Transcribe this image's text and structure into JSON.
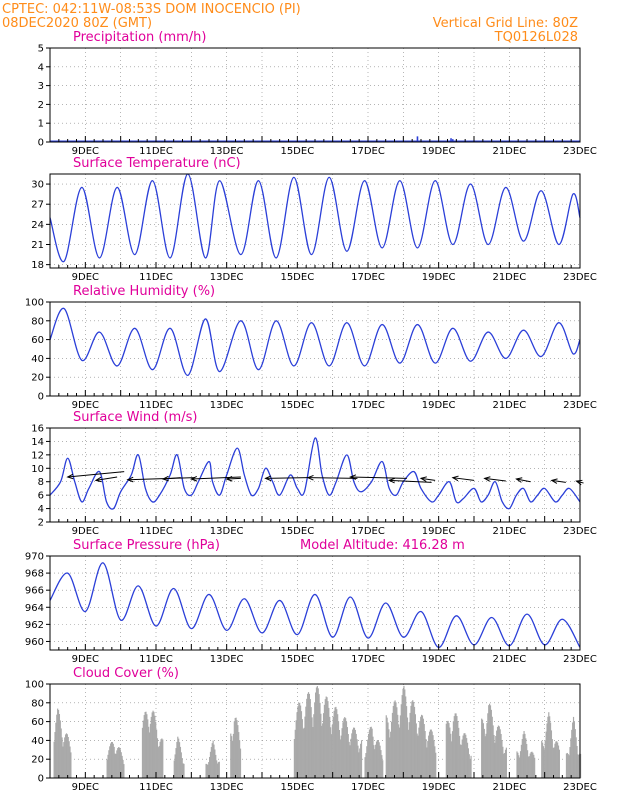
{
  "header": {
    "line1_left": "CPTEC:   042:11W-08:53S   DOM INOCENCIO (PI)",
    "line2_left": "08DEC2020 80Z (GMT)",
    "line2_right": "Vertical Grid Line: 80Z",
    "line3_right": "TQ0126L028"
  },
  "colors": {
    "header": "#ff8c1a",
    "title": "#e0009a",
    "series": "#2b3fd8",
    "cloud": "#a9a9a9",
    "arrow": "#000000"
  },
  "chart_data": [
    {
      "type": "bar",
      "title": "Precipitation (mm/h)",
      "ylim": [
        0,
        5
      ],
      "yticks": [
        0,
        1,
        2,
        3,
        4,
        5
      ],
      "xlim": [
        8,
        23
      ],
      "xtick_days": [
        9,
        11,
        13,
        15,
        17,
        19,
        21,
        23
      ],
      "xtick_labels": [
        "9DEC",
        "11DEC",
        "13DEC",
        "15DEC",
        "17DEC",
        "19DEC",
        "21DEC",
        "23DEC"
      ],
      "grid": true,
      "events": [
        {
          "day": 18.4,
          "value": 0.3
        },
        {
          "day": 19.35,
          "value": 0.2
        },
        {
          "day": 19.4,
          "value": 0.15
        }
      ],
      "baseline": 0.05
    },
    {
      "type": "line",
      "title": "Surface Temperature (nC)",
      "ylim": [
        17.5,
        31.5
      ],
      "yticks": [
        18,
        21,
        24,
        27,
        30
      ],
      "xlim": [
        8,
        23
      ],
      "grid": true,
      "start_value": 25,
      "maxima": [
        [
          8.9,
          29.5
        ],
        [
          9.9,
          29.5
        ],
        [
          10.9,
          30.5
        ],
        [
          11.9,
          31.5
        ],
        [
          12.8,
          30.5
        ],
        [
          13.9,
          30.5
        ],
        [
          14.9,
          31
        ],
        [
          15.9,
          31
        ],
        [
          16.9,
          30.5
        ],
        [
          17.9,
          30.5
        ],
        [
          18.9,
          30.5
        ],
        [
          19.9,
          30
        ],
        [
          20.9,
          29.5
        ],
        [
          21.9,
          29
        ],
        [
          22.8,
          28.5
        ]
      ],
      "minima": [
        [
          8.4,
          18.5
        ],
        [
          9.4,
          19
        ],
        [
          10.4,
          19.5
        ],
        [
          11.4,
          19
        ],
        [
          12.4,
          19
        ],
        [
          13.4,
          19.5
        ],
        [
          14.4,
          19
        ],
        [
          15.4,
          19.5
        ],
        [
          16.4,
          20
        ],
        [
          17.4,
          20.5
        ],
        [
          18.4,
          20.5
        ],
        [
          19.4,
          21
        ],
        [
          20.4,
          21
        ],
        [
          21.4,
          21.5
        ],
        [
          22.4,
          21
        ]
      ],
      "end_value": 25
    },
    {
      "type": "line",
      "title": "Relative Humidity (%)",
      "ylim": [
        0,
        100
      ],
      "yticks": [
        0,
        20,
        40,
        60,
        80,
        100
      ],
      "xlim": [
        8,
        23
      ],
      "grid": true,
      "start_value": 60,
      "maxima": [
        [
          8.4,
          93
        ],
        [
          9.4,
          68
        ],
        [
          10.4,
          72
        ],
        [
          11.4,
          72
        ],
        [
          12.4,
          82
        ],
        [
          13.4,
          80
        ],
        [
          14.4,
          80
        ],
        [
          15.4,
          78
        ],
        [
          16.4,
          78
        ],
        [
          17.4,
          76
        ],
        [
          18.4,
          76
        ],
        [
          19.4,
          72
        ],
        [
          20.4,
          68
        ],
        [
          21.4,
          70
        ],
        [
          22.4,
          78
        ]
      ],
      "minima": [
        [
          8.9,
          38
        ],
        [
          9.9,
          32
        ],
        [
          10.9,
          28
        ],
        [
          11.9,
          22
        ],
        [
          12.8,
          26
        ],
        [
          13.9,
          28
        ],
        [
          14.9,
          32
        ],
        [
          15.9,
          32
        ],
        [
          16.9,
          32
        ],
        [
          17.9,
          35
        ],
        [
          18.9,
          35
        ],
        [
          19.9,
          37
        ],
        [
          20.9,
          40
        ],
        [
          21.9,
          42
        ],
        [
          22.8,
          45
        ]
      ],
      "end_value": 60
    },
    {
      "type": "line",
      "title": "Surface Wind (m/s)",
      "ylim": [
        2,
        16
      ],
      "yticks": [
        2,
        4,
        6,
        8,
        10,
        12,
        14,
        16
      ],
      "xlim": [
        8,
        23
      ],
      "grid": true,
      "values": [
        [
          8,
          6
        ],
        [
          8.3,
          8
        ],
        [
          8.5,
          11.5
        ],
        [
          8.7,
          8
        ],
        [
          8.9,
          5
        ],
        [
          9.1,
          7
        ],
        [
          9.4,
          9.5
        ],
        [
          9.6,
          5
        ],
        [
          9.8,
          4
        ],
        [
          10.0,
          6.5
        ],
        [
          10.3,
          9
        ],
        [
          10.5,
          12
        ],
        [
          10.7,
          7
        ],
        [
          10.9,
          5
        ],
        [
          11.1,
          6
        ],
        [
          11.4,
          9
        ],
        [
          11.6,
          12
        ],
        [
          11.8,
          7
        ],
        [
          12.0,
          6
        ],
        [
          12.2,
          8
        ],
        [
          12.5,
          11
        ],
        [
          12.6,
          8
        ],
        [
          12.8,
          6
        ],
        [
          13.0,
          9
        ],
        [
          13.3,
          13
        ],
        [
          13.5,
          9
        ],
        [
          13.7,
          6
        ],
        [
          13.9,
          7
        ],
        [
          14.1,
          10
        ],
        [
          14.3,
          8
        ],
        [
          14.5,
          6
        ],
        [
          14.8,
          9
        ],
        [
          15.0,
          7
        ],
        [
          15.2,
          6.5
        ],
        [
          15.5,
          14.5
        ],
        [
          15.7,
          9
        ],
        [
          15.9,
          6
        ],
        [
          16.1,
          8
        ],
        [
          16.4,
          12
        ],
        [
          16.6,
          8
        ],
        [
          16.8,
          6.5
        ],
        [
          17.1,
          8
        ],
        [
          17.4,
          11
        ],
        [
          17.6,
          7
        ],
        [
          17.8,
          6
        ],
        [
          18.0,
          8
        ],
        [
          18.3,
          9.5
        ],
        [
          18.5,
          7
        ],
        [
          18.8,
          5
        ],
        [
          19.0,
          6
        ],
        [
          19.3,
          8
        ],
        [
          19.5,
          5
        ],
        [
          19.7,
          5.5
        ],
        [
          20.0,
          7
        ],
        [
          20.2,
          5
        ],
        [
          20.4,
          6
        ],
        [
          20.6,
          8
        ],
        [
          20.8,
          5
        ],
        [
          21.0,
          4
        ],
        [
          21.2,
          6
        ],
        [
          21.4,
          7
        ],
        [
          21.6,
          5
        ],
        [
          21.8,
          6
        ],
        [
          22.0,
          7
        ],
        [
          22.3,
          5
        ],
        [
          22.5,
          6
        ],
        [
          22.7,
          7
        ],
        [
          23,
          5
        ]
      ],
      "arrows": [
        [
          8.5,
          8.7,
          1.6,
          -0.8
        ],
        [
          9.3,
          8.2,
          0.6,
          -0.5
        ],
        [
          10.2,
          8.3,
          1.9,
          -0.3
        ],
        [
          11.2,
          8.4,
          0.5,
          -0.2
        ],
        [
          12.0,
          8.4,
          1.4,
          -0.3
        ],
        [
          13.0,
          8.4,
          0.4,
          -0.1
        ],
        [
          14.1,
          8.5,
          1.2,
          -0.1
        ],
        [
          15.3,
          8.6,
          1.4,
          0.1
        ],
        [
          16.5,
          8.7,
          1.6,
          0.2
        ],
        [
          17.6,
          8.2,
          1.2,
          0.3
        ],
        [
          18.5,
          8.5,
          0.4,
          0.3
        ],
        [
          19.4,
          8.6,
          0.6,
          0.4
        ],
        [
          20.3,
          8.5,
          0.6,
          0.4
        ],
        [
          21.2,
          8.4,
          0.4,
          0.4
        ],
        [
          22.2,
          8.2,
          0.4,
          0.3
        ],
        [
          22.9,
          8.1,
          0.2,
          0.3
        ]
      ]
    },
    {
      "type": "line",
      "title": "Surface Pressure (hPa)",
      "annotation": "Model Altitude: 416.28 m",
      "ylim": [
        959,
        970
      ],
      "yticks": [
        960,
        962,
        964,
        966,
        968,
        970
      ],
      "xlim": [
        8,
        23
      ],
      "grid": true,
      "maxima": [
        [
          8.5,
          968
        ],
        [
          9.5,
          969.2
        ],
        [
          10.5,
          966.5
        ],
        [
          11.5,
          966.2
        ],
        [
          12.5,
          965.5
        ],
        [
          13.5,
          965
        ],
        [
          14.5,
          964.8
        ],
        [
          15.5,
          965.5
        ],
        [
          16.5,
          965.2
        ],
        [
          17.5,
          964.5
        ],
        [
          18.5,
          963.5
        ],
        [
          19.5,
          963
        ],
        [
          20.5,
          962.8
        ],
        [
          21.5,
          963.2
        ],
        [
          22.5,
          962.6
        ]
      ],
      "minima": [
        [
          9.0,
          963.5
        ],
        [
          10.0,
          962.5
        ],
        [
          11.0,
          961.8
        ],
        [
          12.0,
          961.5
        ],
        [
          13.0,
          961.3
        ],
        [
          14.0,
          961
        ],
        [
          15.0,
          960.8
        ],
        [
          16.0,
          960.5
        ],
        [
          17.0,
          960.4
        ],
        [
          18.0,
          960.5
        ],
        [
          19.0,
          959.3
        ],
        [
          20.0,
          959.6
        ],
        [
          21.0,
          959.5
        ],
        [
          22.0,
          959.6
        ],
        [
          23.0,
          959.3
        ]
      ],
      "start_value": 964.8
    },
    {
      "type": "bar",
      "title": "Cloud Cover (%)",
      "ylim": [
        0,
        100
      ],
      "yticks": [
        0,
        20,
        40,
        60,
        80,
        100
      ],
      "xlim": [
        8,
        23
      ],
      "grid": true,
      "blocks": [
        {
          "from": 8.1,
          "to": 8.6,
          "peak": 75,
          "at": 8.2
        },
        {
          "from": 9.6,
          "to": 10.1,
          "peak": 45,
          "at": 9.8
        },
        {
          "from": 10.6,
          "to": 11.2,
          "peak": 85,
          "at": 10.8
        },
        {
          "from": 11.5,
          "to": 11.8,
          "peak": 45,
          "at": 11.6
        },
        {
          "from": 12.4,
          "to": 12.8,
          "peak": 40,
          "at": 12.6
        },
        {
          "from": 13.1,
          "to": 13.4,
          "peak": 78,
          "at": 13.2
        },
        {
          "from": 14.9,
          "to": 16.8,
          "peak": 100,
          "at": 15.5
        },
        {
          "from": 16.9,
          "to": 17.4,
          "peak": 60,
          "at": 17.1
        },
        {
          "from": 17.5,
          "to": 18.9,
          "peak": 98,
          "at": 18.0
        },
        {
          "from": 19.2,
          "to": 19.9,
          "peak": 75,
          "at": 19.4
        },
        {
          "from": 20.2,
          "to": 20.9,
          "peak": 82,
          "at": 20.4
        },
        {
          "from": 21.2,
          "to": 21.7,
          "peak": 50,
          "at": 21.4
        },
        {
          "from": 21.9,
          "to": 22.4,
          "peak": 70,
          "at": 22.1
        },
        {
          "from": 22.6,
          "to": 23.0,
          "peak": 65,
          "at": 22.8
        }
      ]
    }
  ]
}
